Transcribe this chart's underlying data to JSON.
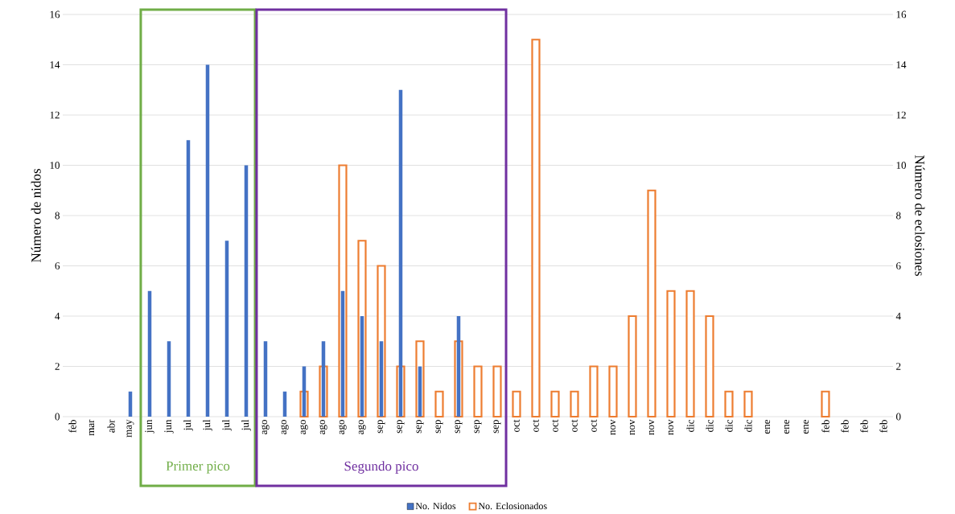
{
  "chart_data": {
    "type": "bar",
    "categories": [
      "feb",
      "mar",
      "abr",
      "may",
      "jun",
      "jun",
      "jul",
      "jul",
      "jul",
      "jul",
      "ago",
      "ago",
      "ago",
      "ago",
      "ago",
      "ago",
      "sep",
      "sep",
      "sep",
      "sep",
      "sep",
      "sep",
      "sep",
      "oct",
      "oct",
      "oct",
      "oct",
      "oct",
      "nov",
      "nov",
      "nov",
      "nov",
      "dic",
      "dic",
      "dic",
      "dic",
      "ene",
      "ene",
      "ene",
      "feb",
      "feb",
      "feb",
      "feb"
    ],
    "series": [
      {
        "name": "No. Nidos",
        "color": "#4472c4",
        "values": [
          0,
          0,
          0,
          1,
          5,
          3,
          11,
          14,
          7,
          10,
          3,
          1,
          2,
          3,
          5,
          4,
          3,
          13,
          2,
          0,
          4,
          0,
          0,
          0,
          0,
          0,
          0,
          0,
          0,
          0,
          0,
          0,
          0,
          0,
          0,
          0,
          0,
          0,
          0,
          0,
          0,
          0,
          0
        ]
      },
      {
        "name": "No. Eclosionados",
        "color": "#ed7d31",
        "axis": "y2",
        "values": [
          0,
          0,
          0,
          0,
          0,
          0,
          0,
          0,
          0,
          0,
          0,
          0,
          1,
          2,
          10,
          7,
          6,
          2,
          3,
          1,
          3,
          2,
          2,
          1,
          15,
          1,
          1,
          2,
          2,
          4,
          9,
          5,
          5,
          4,
          1,
          1,
          0,
          0,
          0,
          1,
          0,
          0,
          0
        ]
      }
    ],
    "ylabel": "Número de nidos",
    "y2label": "Número de eclosiones",
    "ylim": [
      0,
      16
    ],
    "yticks": [
      0,
      2,
      4,
      6,
      8,
      10,
      12,
      14,
      16
    ],
    "y2lim": [
      0,
      16
    ],
    "y2ticks": [
      0,
      2,
      4,
      6,
      8,
      10,
      12,
      14,
      16
    ],
    "annotations": [
      "Primer pico",
      "Segundo pico"
    ],
    "grid": "y",
    "legend": "bottom"
  }
}
